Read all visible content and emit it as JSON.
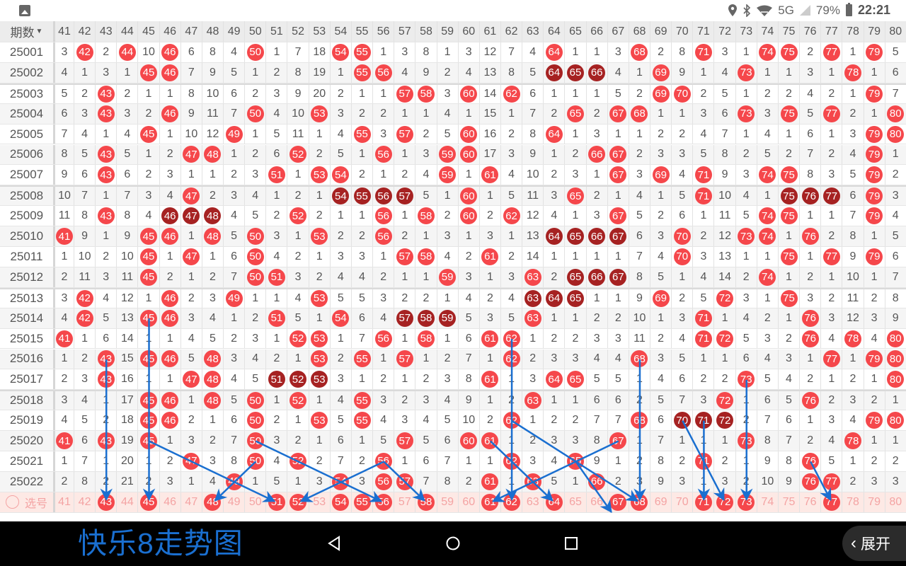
{
  "status_bar": {
    "icons": [
      "image-icon",
      "location-icon",
      "bluetooth-icon",
      "wifi-icon",
      "signal-icon",
      "battery-icon"
    ],
    "network": "5G",
    "battery": "79%",
    "time": "22:21"
  },
  "overlay_title": "快乐8走势图",
  "header": {
    "issue_label": "期数",
    "numbers": [
      41,
      42,
      43,
      44,
      45,
      46,
      47,
      48,
      49,
      50,
      51,
      52,
      53,
      54,
      55,
      56,
      57,
      58,
      59,
      60,
      61,
      62,
      63,
      64,
      65,
      66,
      67,
      68,
      69,
      70,
      71,
      72,
      73,
      74,
      75,
      76,
      77,
      78,
      79,
      80
    ]
  },
  "colors": {
    "hit": "#f5474b",
    "consecutive_hit": "#a62222",
    "annotation": "#1a6fd0"
  },
  "rows": [
    {
      "issue": "25001",
      "cells": [
        3,
        42,
        2,
        44,
        10,
        46,
        6,
        8,
        4,
        50,
        1,
        7,
        18,
        54,
        55,
        1,
        3,
        8,
        1,
        3,
        12,
        7,
        4,
        64,
        1,
        1,
        3,
        68,
        2,
        8,
        71,
        3,
        1,
        74,
        75,
        2,
        77,
        1,
        79,
        5
      ]
    },
    {
      "issue": "25002",
      "cells": [
        4,
        1,
        3,
        1,
        45,
        46,
        7,
        9,
        5,
        1,
        2,
        8,
        19,
        1,
        55,
        56,
        4,
        9,
        2,
        4,
        13,
        8,
        5,
        64,
        65,
        66,
        4,
        1,
        69,
        9,
        1,
        4,
        73,
        1,
        1,
        3,
        1,
        78,
        1,
        6
      ]
    },
    {
      "issue": "25003",
      "cells": [
        5,
        2,
        43,
        2,
        1,
        1,
        8,
        10,
        6,
        2,
        3,
        9,
        20,
        2,
        1,
        1,
        57,
        58,
        3,
        60,
        14,
        62,
        6,
        1,
        1,
        1,
        5,
        2,
        69,
        70,
        2,
        5,
        1,
        2,
        2,
        4,
        2,
        1,
        79,
        7
      ]
    },
    {
      "issue": "25004",
      "cells": [
        6,
        3,
        43,
        3,
        2,
        46,
        9,
        11,
        7,
        50,
        4,
        10,
        53,
        3,
        2,
        2,
        1,
        1,
        4,
        1,
        15,
        1,
        7,
        2,
        65,
        2,
        67,
        68,
        1,
        1,
        3,
        6,
        73,
        3,
        75,
        5,
        77,
        2,
        1,
        80
      ]
    },
    {
      "issue": "25005",
      "cells": [
        7,
        4,
        1,
        4,
        45,
        1,
        10,
        12,
        49,
        1,
        5,
        11,
        1,
        4,
        55,
        3,
        57,
        2,
        5,
        60,
        16,
        2,
        8,
        64,
        1,
        3,
        1,
        1,
        2,
        2,
        4,
        7,
        1,
        4,
        1,
        6,
        1,
        3,
        79,
        80
      ]
    },
    {
      "issue": "25006",
      "cells": [
        8,
        5,
        43,
        5,
        1,
        2,
        47,
        48,
        1,
        2,
        6,
        52,
        2,
        5,
        1,
        56,
        1,
        3,
        59,
        60,
        17,
        3,
        9,
        1,
        2,
        66,
        67,
        2,
        3,
        3,
        5,
        8,
        2,
        5,
        2,
        7,
        2,
        4,
        79,
        1
      ]
    },
    {
      "issue": "25007",
      "cells": [
        9,
        6,
        43,
        6,
        2,
        3,
        1,
        1,
        2,
        3,
        51,
        1,
        53,
        54,
        2,
        1,
        2,
        4,
        59,
        1,
        61,
        4,
        10,
        2,
        3,
        1,
        67,
        3,
        69,
        4,
        71,
        9,
        3,
        74,
        75,
        8,
        3,
        5,
        79,
        2
      ]
    },
    {
      "issue": "25008",
      "cells": [
        10,
        7,
        1,
        7,
        3,
        4,
        47,
        2,
        3,
        4,
        1,
        2,
        1,
        54,
        55,
        56,
        57,
        5,
        1,
        60,
        1,
        5,
        11,
        3,
        65,
        2,
        1,
        4,
        1,
        5,
        71,
        10,
        4,
        1,
        75,
        76,
        77,
        6,
        79,
        3
      ]
    },
    {
      "issue": "25009",
      "cells": [
        11,
        8,
        43,
        8,
        4,
        46,
        47,
        48,
        4,
        5,
        2,
        52,
        2,
        1,
        1,
        56,
        1,
        58,
        2,
        60,
        2,
        62,
        12,
        4,
        1,
        3,
        67,
        5,
        2,
        6,
        1,
        11,
        5,
        74,
        75,
        1,
        1,
        7,
        79,
        4
      ]
    },
    {
      "issue": "25010",
      "cells": [
        41,
        9,
        1,
        9,
        45,
        46,
        1,
        48,
        5,
        50,
        3,
        1,
        53,
        2,
        2,
        56,
        2,
        1,
        3,
        1,
        3,
        1,
        13,
        64,
        65,
        66,
        67,
        6,
        3,
        70,
        2,
        12,
        73,
        74,
        1,
        76,
        2,
        8,
        1,
        5
      ]
    },
    {
      "issue": "25011",
      "cells": [
        1,
        10,
        2,
        10,
        45,
        1,
        47,
        1,
        6,
        50,
        4,
        2,
        1,
        3,
        3,
        1,
        57,
        58,
        4,
        2,
        61,
        2,
        14,
        1,
        1,
        1,
        1,
        7,
        4,
        70,
        3,
        13,
        1,
        1,
        75,
        1,
        77,
        9,
        79,
        6
      ]
    },
    {
      "issue": "25012",
      "cells": [
        2,
        11,
        3,
        11,
        45,
        2,
        1,
        2,
        7,
        50,
        51,
        3,
        2,
        4,
        4,
        2,
        1,
        1,
        59,
        3,
        1,
        3,
        63,
        2,
        65,
        66,
        67,
        8,
        5,
        1,
        4,
        14,
        2,
        74,
        1,
        2,
        1,
        10,
        1,
        7
      ]
    },
    {
      "issue": "25013",
      "cells": [
        3,
        42,
        4,
        12,
        1,
        46,
        2,
        3,
        49,
        1,
        1,
        4,
        53,
        5,
        5,
        3,
        2,
        2,
        1,
        4,
        2,
        4,
        63,
        64,
        65,
        1,
        1,
        9,
        69,
        2,
        5,
        72,
        3,
        1,
        75,
        3,
        2,
        11,
        2,
        8
      ]
    },
    {
      "issue": "25014",
      "cells": [
        4,
        42,
        5,
        13,
        45,
        46,
        3,
        4,
        1,
        2,
        51,
        5,
        1,
        54,
        6,
        4,
        57,
        58,
        59,
        5,
        3,
        5,
        63,
        1,
        1,
        2,
        2,
        10,
        1,
        3,
        71,
        1,
        4,
        2,
        1,
        76,
        3,
        12,
        3,
        9
      ]
    },
    {
      "issue": "25015",
      "cells": [
        41,
        1,
        6,
        14,
        1,
        1,
        4,
        5,
        2,
        3,
        1,
        52,
        53,
        1,
        7,
        56,
        1,
        58,
        1,
        6,
        61,
        62,
        1,
        2,
        2,
        3,
        3,
        11,
        2,
        4,
        71,
        72,
        5,
        3,
        2,
        76,
        4,
        78,
        4,
        80
      ]
    },
    {
      "issue": "25016",
      "cells": [
        1,
        2,
        43,
        15,
        45,
        46,
        5,
        48,
        3,
        4,
        2,
        1,
        53,
        2,
        55,
        1,
        57,
        1,
        2,
        7,
        1,
        62,
        2,
        3,
        3,
        4,
        4,
        68,
        3,
        5,
        1,
        1,
        6,
        4,
        3,
        1,
        77,
        1,
        79,
        80
      ]
    },
    {
      "issue": "25017",
      "cells": [
        2,
        3,
        43,
        16,
        1,
        1,
        47,
        48,
        4,
        5,
        51,
        52,
        53,
        3,
        1,
        2,
        1,
        2,
        3,
        8,
        61,
        1,
        3,
        64,
        65,
        5,
        5,
        1,
        4,
        6,
        2,
        2,
        73,
        5,
        4,
        2,
        1,
        2,
        1,
        80
      ]
    },
    {
      "issue": "25018",
      "cells": [
        3,
        4,
        1,
        17,
        45,
        46,
        1,
        48,
        5,
        50,
        1,
        52,
        1,
        4,
        55,
        3,
        2,
        3,
        4,
        9,
        1,
        2,
        63,
        1,
        1,
        6,
        6,
        2,
        5,
        7,
        3,
        72,
        1,
        6,
        5,
        76,
        2,
        3,
        2,
        1
      ]
    },
    {
      "issue": "25019",
      "cells": [
        4,
        5,
        2,
        18,
        45,
        46,
        2,
        1,
        6,
        50,
        2,
        1,
        53,
        5,
        55,
        4,
        3,
        4,
        5,
        10,
        2,
        62,
        1,
        2,
        2,
        7,
        7,
        68,
        6,
        70,
        71,
        72,
        2,
        7,
        6,
        1,
        3,
        4,
        79,
        80
      ]
    },
    {
      "issue": "25020",
      "cells": [
        41,
        6,
        43,
        19,
        45,
        1,
        3,
        2,
        7,
        50,
        3,
        2,
        1,
        6,
        1,
        5,
        57,
        5,
        6,
        60,
        61,
        1,
        2,
        3,
        3,
        8,
        67,
        1,
        7,
        1,
        1,
        1,
        73,
        8,
        7,
        2,
        4,
        78,
        1,
        1
      ]
    },
    {
      "issue": "25021",
      "cells": [
        1,
        7,
        1,
        20,
        1,
        2,
        47,
        3,
        8,
        50,
        4,
        52,
        2,
        7,
        2,
        56,
        1,
        6,
        7,
        1,
        1,
        62,
        3,
        4,
        65,
        9,
        1,
        2,
        8,
        2,
        71,
        2,
        1,
        9,
        8,
        76,
        5,
        1,
        2,
        2
      ]
    },
    {
      "issue": "25022",
      "cells": [
        2,
        8,
        2,
        21,
        2,
        3,
        1,
        4,
        49,
        1,
        5,
        1,
        3,
        54,
        3,
        56,
        57,
        7,
        8,
        2,
        61,
        1,
        63,
        5,
        1,
        66,
        2,
        3,
        9,
        3,
        1,
        3,
        2,
        10,
        9,
        76,
        77,
        2,
        3,
        3
      ]
    }
  ],
  "selection": {
    "label": "选号",
    "selected": [
      43,
      45,
      48,
      51,
      52,
      54,
      55,
      56,
      58,
      61,
      62,
      64,
      67,
      68,
      71,
      72,
      73,
      77
    ]
  },
  "expand_button": {
    "label": "展开",
    "icon": "chevron-left-icon"
  },
  "nav_bar": {
    "icons": [
      "back-icon",
      "home-icon",
      "recents-icon"
    ]
  }
}
